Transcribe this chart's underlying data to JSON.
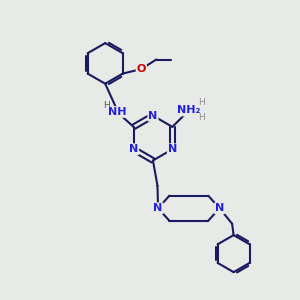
{
  "background_color": "#e8eae8",
  "bond_color": "#1a1a5e",
  "n_color": "#2020dd",
  "o_color": "#cc0000",
  "line_width": 1.5,
  "font_size": 8,
  "figsize": [
    3.0,
    3.0
  ],
  "dpi": 100,
  "nh2_color": "#708090",
  "xlim": [
    0,
    10
  ],
  "ylim": [
    0,
    10
  ]
}
